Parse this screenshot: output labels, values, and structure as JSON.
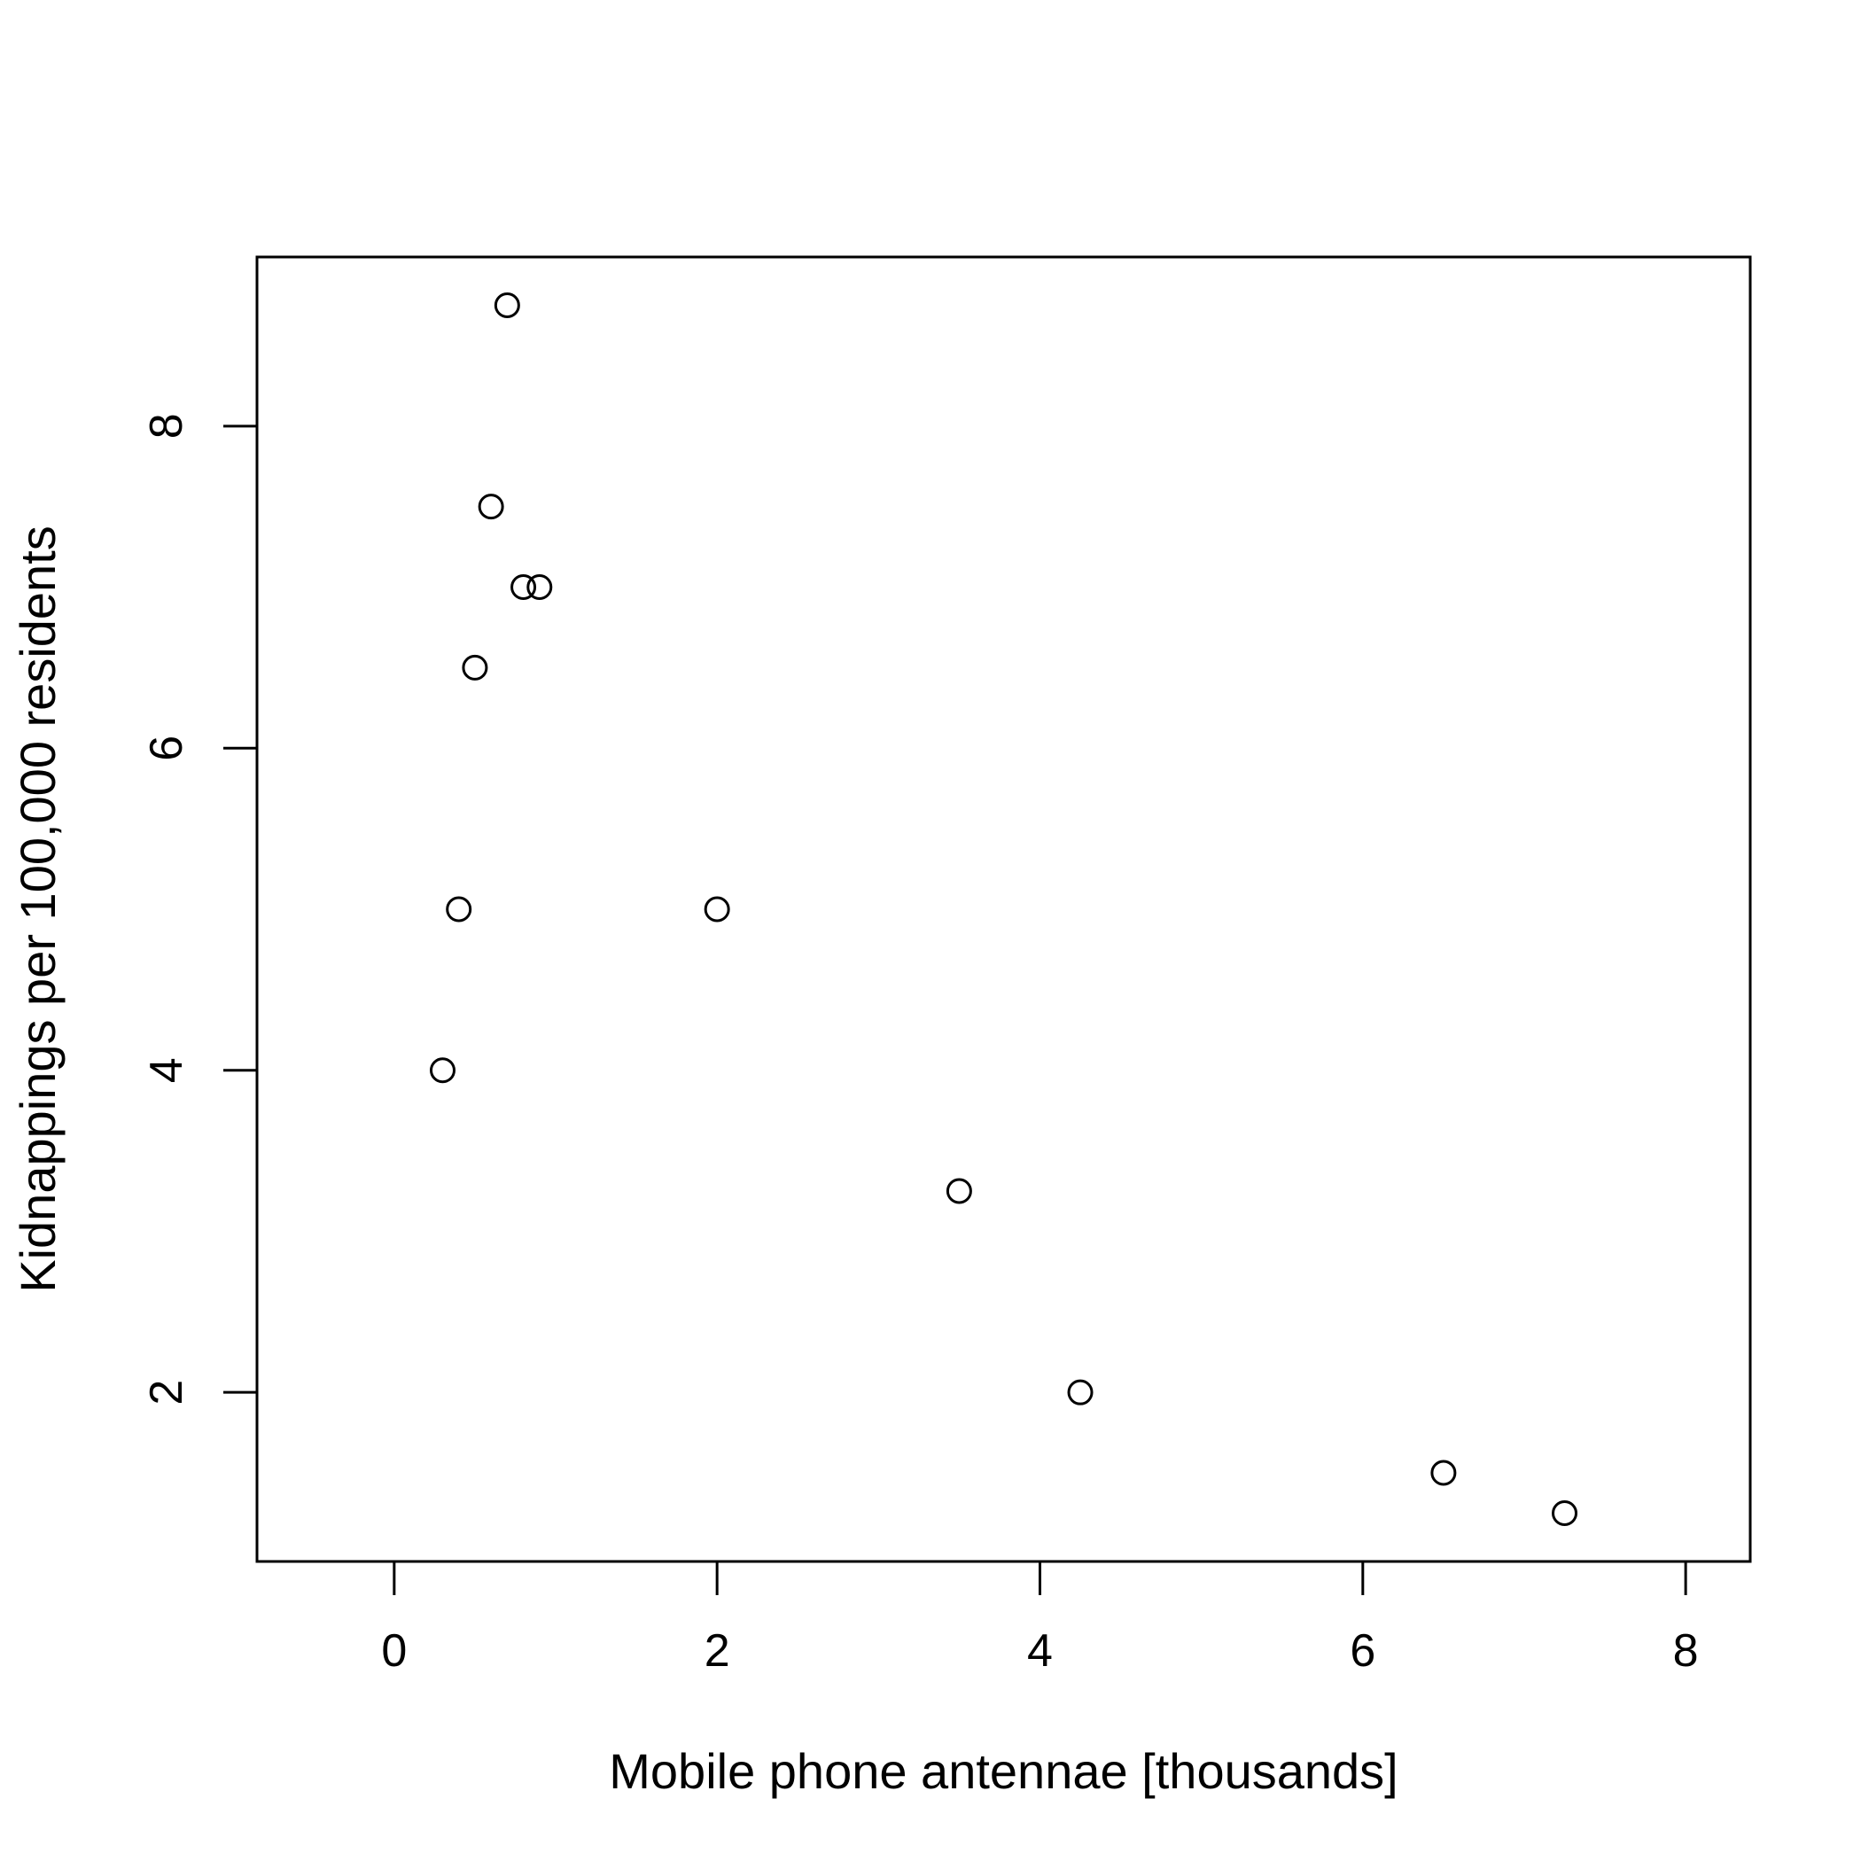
{
  "chart_data": {
    "type": "scatter",
    "title": "",
    "xlabel": "Mobile phone antennae [thousands]",
    "ylabel": "Kidnappings per 100,000 residents",
    "xlim": [
      -0.85,
      8.4
    ],
    "ylim": [
      0.95,
      9.05
    ],
    "x_ticks": [
      0,
      2,
      4,
      6,
      8
    ],
    "y_ticks": [
      2,
      4,
      6,
      8
    ],
    "x_tick_labels": [
      "0",
      "2",
      "4",
      "6",
      "8"
    ],
    "y_tick_labels": [
      "2",
      "4",
      "6",
      "8"
    ],
    "grid": false,
    "legend": "none",
    "marker": "open-circle",
    "color": "#000000",
    "points": [
      {
        "x": 0.3,
        "y": 4.0
      },
      {
        "x": 0.4,
        "y": 5.0
      },
      {
        "x": 0.5,
        "y": 6.5
      },
      {
        "x": 0.6,
        "y": 7.5
      },
      {
        "x": 0.7,
        "y": 8.75
      },
      {
        "x": 0.8,
        "y": 7.0
      },
      {
        "x": 0.9,
        "y": 7.0
      },
      {
        "x": 2.0,
        "y": 5.0
      },
      {
        "x": 3.5,
        "y": 3.25
      },
      {
        "x": 4.25,
        "y": 2.0
      },
      {
        "x": 6.5,
        "y": 1.5
      },
      {
        "x": 7.25,
        "y": 1.25
      }
    ]
  }
}
